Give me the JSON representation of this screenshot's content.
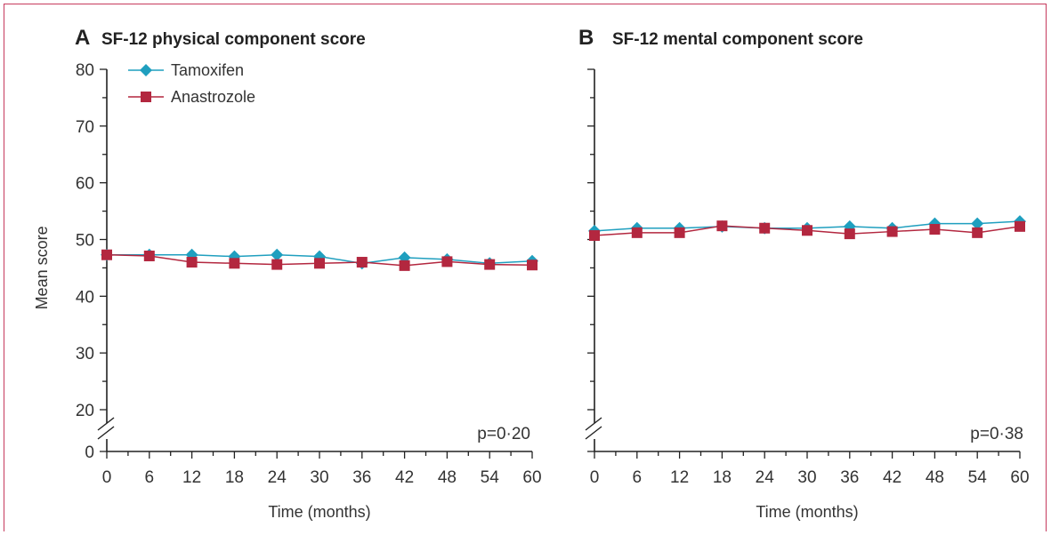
{
  "colors": {
    "tamoxifen": "#1f9fbf",
    "anastrozole": "#b3273f",
    "axis": "#222222",
    "frame": "#c63a5d"
  },
  "chart_data": [
    {
      "type": "line",
      "panel": "A",
      "title": "SF-12 physical component score",
      "xlabel": "Time (months)",
      "ylabel": "Mean score",
      "x": [
        0,
        6,
        12,
        18,
        24,
        30,
        36,
        42,
        48,
        54,
        60
      ],
      "y_ticks": [
        0,
        20,
        30,
        40,
        50,
        60,
        70,
        80
      ],
      "ylim": [
        0,
        80
      ],
      "axis_break": "between 0 and 20",
      "legend_position": "top-left",
      "annotation": "p=0·20",
      "series": [
        {
          "name": "Tamoxifen",
          "marker": "diamond",
          "values": [
            47.3,
            47.3,
            47.3,
            47.0,
            47.3,
            47.0,
            45.8,
            46.8,
            46.5,
            45.8,
            46.2
          ]
        },
        {
          "name": "Anastrozole",
          "marker": "square",
          "values": [
            47.3,
            47.1,
            46.0,
            45.8,
            45.6,
            45.8,
            46.0,
            45.4,
            46.1,
            45.6,
            45.5
          ]
        }
      ]
    },
    {
      "type": "line",
      "panel": "B",
      "title": "SF-12 mental component score",
      "xlabel": "Time (months)",
      "ylabel": "",
      "x": [
        0,
        6,
        12,
        18,
        24,
        30,
        36,
        42,
        48,
        54,
        60
      ],
      "ylim": [
        0,
        80
      ],
      "axis_break": "between 0 and 20",
      "annotation": "p=0·38",
      "series": [
        {
          "name": "Tamoxifen",
          "marker": "diamond",
          "values": [
            51.5,
            52.0,
            52.0,
            52.3,
            52.0,
            52.0,
            52.3,
            52.0,
            52.8,
            52.8,
            53.2
          ]
        },
        {
          "name": "Anastrozole",
          "marker": "square",
          "values": [
            50.7,
            51.2,
            51.2,
            52.4,
            52.0,
            51.6,
            51.0,
            51.4,
            51.8,
            51.2,
            52.3
          ]
        }
      ]
    }
  ]
}
